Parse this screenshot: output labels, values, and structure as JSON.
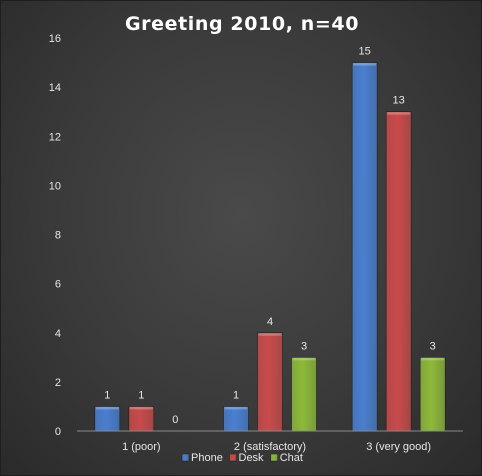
{
  "chart_data": {
    "type": "bar",
    "title": "Greeting 2010, n=40",
    "categories": [
      "1 (poor)",
      "2 (satisfactory)",
      "3 (very good)"
    ],
    "series": [
      {
        "name": "Phone",
        "values": [
          1,
          1,
          15
        ],
        "color": "#4a7fd0"
      },
      {
        "name": "Desk",
        "values": [
          1,
          4,
          13
        ],
        "color": "#c94b4b"
      },
      {
        "name": "Chat",
        "values": [
          0,
          3,
          3
        ],
        "color": "#8dba3a"
      }
    ],
    "ylim": [
      0,
      16
    ],
    "yticks": [
      "0",
      "2",
      "4",
      "6",
      "8",
      "10",
      "12",
      "14",
      "16"
    ],
    "grid": false,
    "legend": "bottom",
    "xlabel": "",
    "ylabel": ""
  }
}
